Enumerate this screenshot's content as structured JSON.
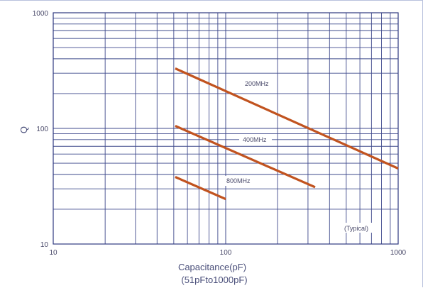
{
  "chart_data": {
    "type": "line",
    "xscale": "log",
    "yscale": "log",
    "xlim": [
      10,
      1000
    ],
    "ylim": [
      10,
      1000
    ],
    "x_ticks": [
      "10",
      "100",
      "1000"
    ],
    "y_ticks": [
      "10",
      "100",
      "1000"
    ],
    "xlabel": "Capacitance(pF)",
    "xlabel_sub": "(51pFto1000pF)",
    "ylabel": "Q",
    "grid": true,
    "note": "(Typical)",
    "series": [
      {
        "name": "200MHz",
        "x": [
          51,
          1000
        ],
        "y": [
          330,
          45
        ]
      },
      {
        "name": "400MHz",
        "x": [
          51,
          330
        ],
        "y": [
          105,
          31
        ]
      },
      {
        "name": "800MHz",
        "x": [
          51,
          100
        ],
        "y": [
          38,
          24.5
        ]
      }
    ],
    "colors": {
      "series": "#c1531f",
      "grid": "#3f4a8c"
    }
  }
}
